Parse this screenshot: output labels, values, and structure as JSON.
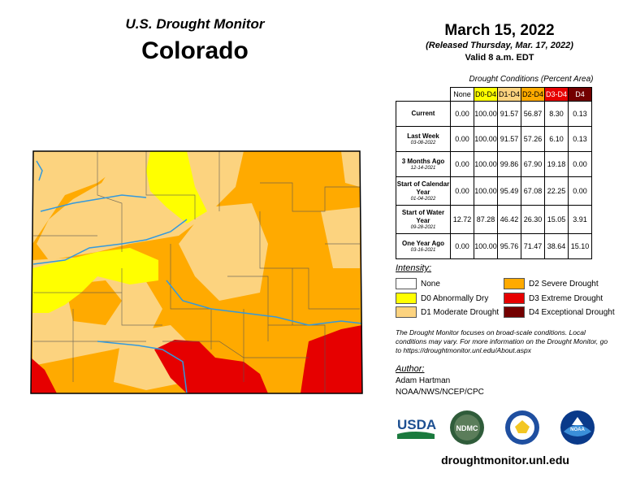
{
  "header": {
    "title": "U.S. Drought Monitor",
    "region": "Colorado",
    "date": "March 15, 2022",
    "released": "(Released Thursday, Mar. 17, 2022)",
    "valid": "Valid 8 a.m. EDT"
  },
  "conditions": {
    "title": "Drought Conditions (Percent Area)",
    "columns": [
      "None",
      "D0-D4",
      "D1-D4",
      "D2-D4",
      "D3-D4",
      "D4"
    ],
    "column_colors": [
      "#ffffff",
      "#ffff00",
      "#fcd37f",
      "#ffaa00",
      "#e60000",
      "#730000"
    ],
    "rows": [
      {
        "label": "Current",
        "date": "",
        "values": [
          "0.00",
          "100.00",
          "91.57",
          "56.87",
          "8.30",
          "0.13"
        ]
      },
      {
        "label": "Last Week",
        "date": "03-08-2022",
        "values": [
          "0.00",
          "100.00",
          "91.57",
          "57.26",
          "6.10",
          "0.13"
        ]
      },
      {
        "label": "3 Months Ago",
        "date": "12-14-2021",
        "values": [
          "0.00",
          "100.00",
          "99.86",
          "67.90",
          "19.18",
          "0.00"
        ]
      },
      {
        "label": "Start of Calendar Year",
        "date": "01-04-2022",
        "values": [
          "0.00",
          "100.00",
          "95.49",
          "67.08",
          "22.25",
          "0.00"
        ]
      },
      {
        "label": "Start of Water Year",
        "date": "09-28-2021",
        "values": [
          "12.72",
          "87.28",
          "46.42",
          "26.30",
          "15.05",
          "3.91"
        ]
      },
      {
        "label": "One Year Ago",
        "date": "03-16-2021",
        "values": [
          "0.00",
          "100.00",
          "95.76",
          "71.47",
          "38.64",
          "15.10"
        ]
      }
    ]
  },
  "legend": {
    "title": "Intensity:",
    "items": [
      {
        "label": "None",
        "color": "#ffffff"
      },
      {
        "label": "D0 Abnormally Dry",
        "color": "#ffff00"
      },
      {
        "label": "D1 Moderate Drought",
        "color": "#fcd37f"
      },
      {
        "label": "D2 Severe Drought",
        "color": "#ffaa00"
      },
      {
        "label": "D3 Extreme Drought",
        "color": "#e60000"
      },
      {
        "label": "D4 Exceptional Drought",
        "color": "#730000"
      }
    ]
  },
  "note": "The Drought Monitor focuses on broad-scale conditions. Local conditions may vary. For more information on the Drought Monitor, go to https://droughtmonitor.unl.edu/About.aspx",
  "author": {
    "label": "Author:",
    "name": "Adam Hartman",
    "org": "NOAA/NWS/NCEP/CPC"
  },
  "logos": {
    "usda": "USDA",
    "ndmc": "NDMC",
    "noaa": "NOAA"
  },
  "url": "droughtmonitor.unl.edu"
}
